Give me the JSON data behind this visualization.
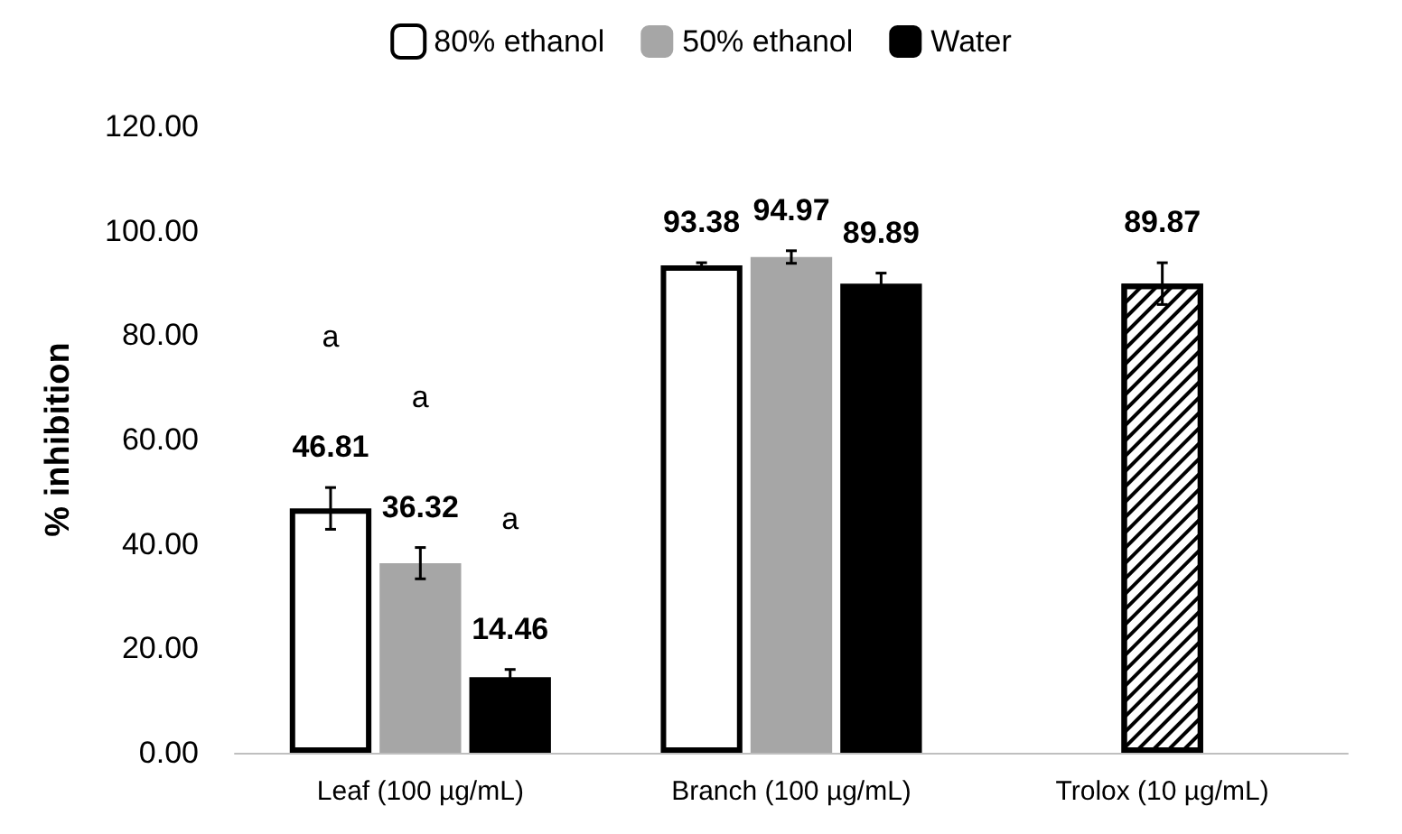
{
  "chart_data": {
    "type": "bar",
    "ylabel": "% inhibition",
    "categories": [
      "Leaf (100 µg/mL)",
      "Branch (100 µg/mL)",
      "Trolox (10 µg/mL)"
    ],
    "series": [
      {
        "name": "80% ethanol",
        "color": "#ffffff",
        "values": [
          46.81,
          93.38,
          null
        ],
        "errors": [
          4,
          0.5,
          null
        ]
      },
      {
        "name": "50% ethanol",
        "color": "#a6a6a6",
        "values": [
          36.32,
          94.97,
          null
        ],
        "errors": [
          3,
          1.2,
          null
        ]
      },
      {
        "name": "Water",
        "color": "#000000",
        "values": [
          14.46,
          89.89,
          null
        ],
        "errors": [
          1.5,
          2,
          null
        ]
      },
      {
        "color": "#ffffff",
        "values": [
          null,
          null,
          89.87
        ],
        "errors": [
          null,
          null,
          4
        ]
      }
    ],
    "data_labels": true,
    "annotations": [
      "a",
      "a",
      "a"
    ],
    "ylim": [
      0,
      120
    ],
    "yticks": [
      {
        "value": 0,
        "label": "0.00"
      },
      {
        "value": 20,
        "label": "20.00"
      },
      {
        "value": 40,
        "label": "40.00"
      },
      {
        "value": 60,
        "label": "60.00"
      },
      {
        "value": 80,
        "label": "80.00"
      },
      {
        "value": 100,
        "label": "100.00"
      },
      {
        "value": 120,
        "label": "120.00"
      }
    ],
    "grid": false,
    "legend": "top"
  }
}
